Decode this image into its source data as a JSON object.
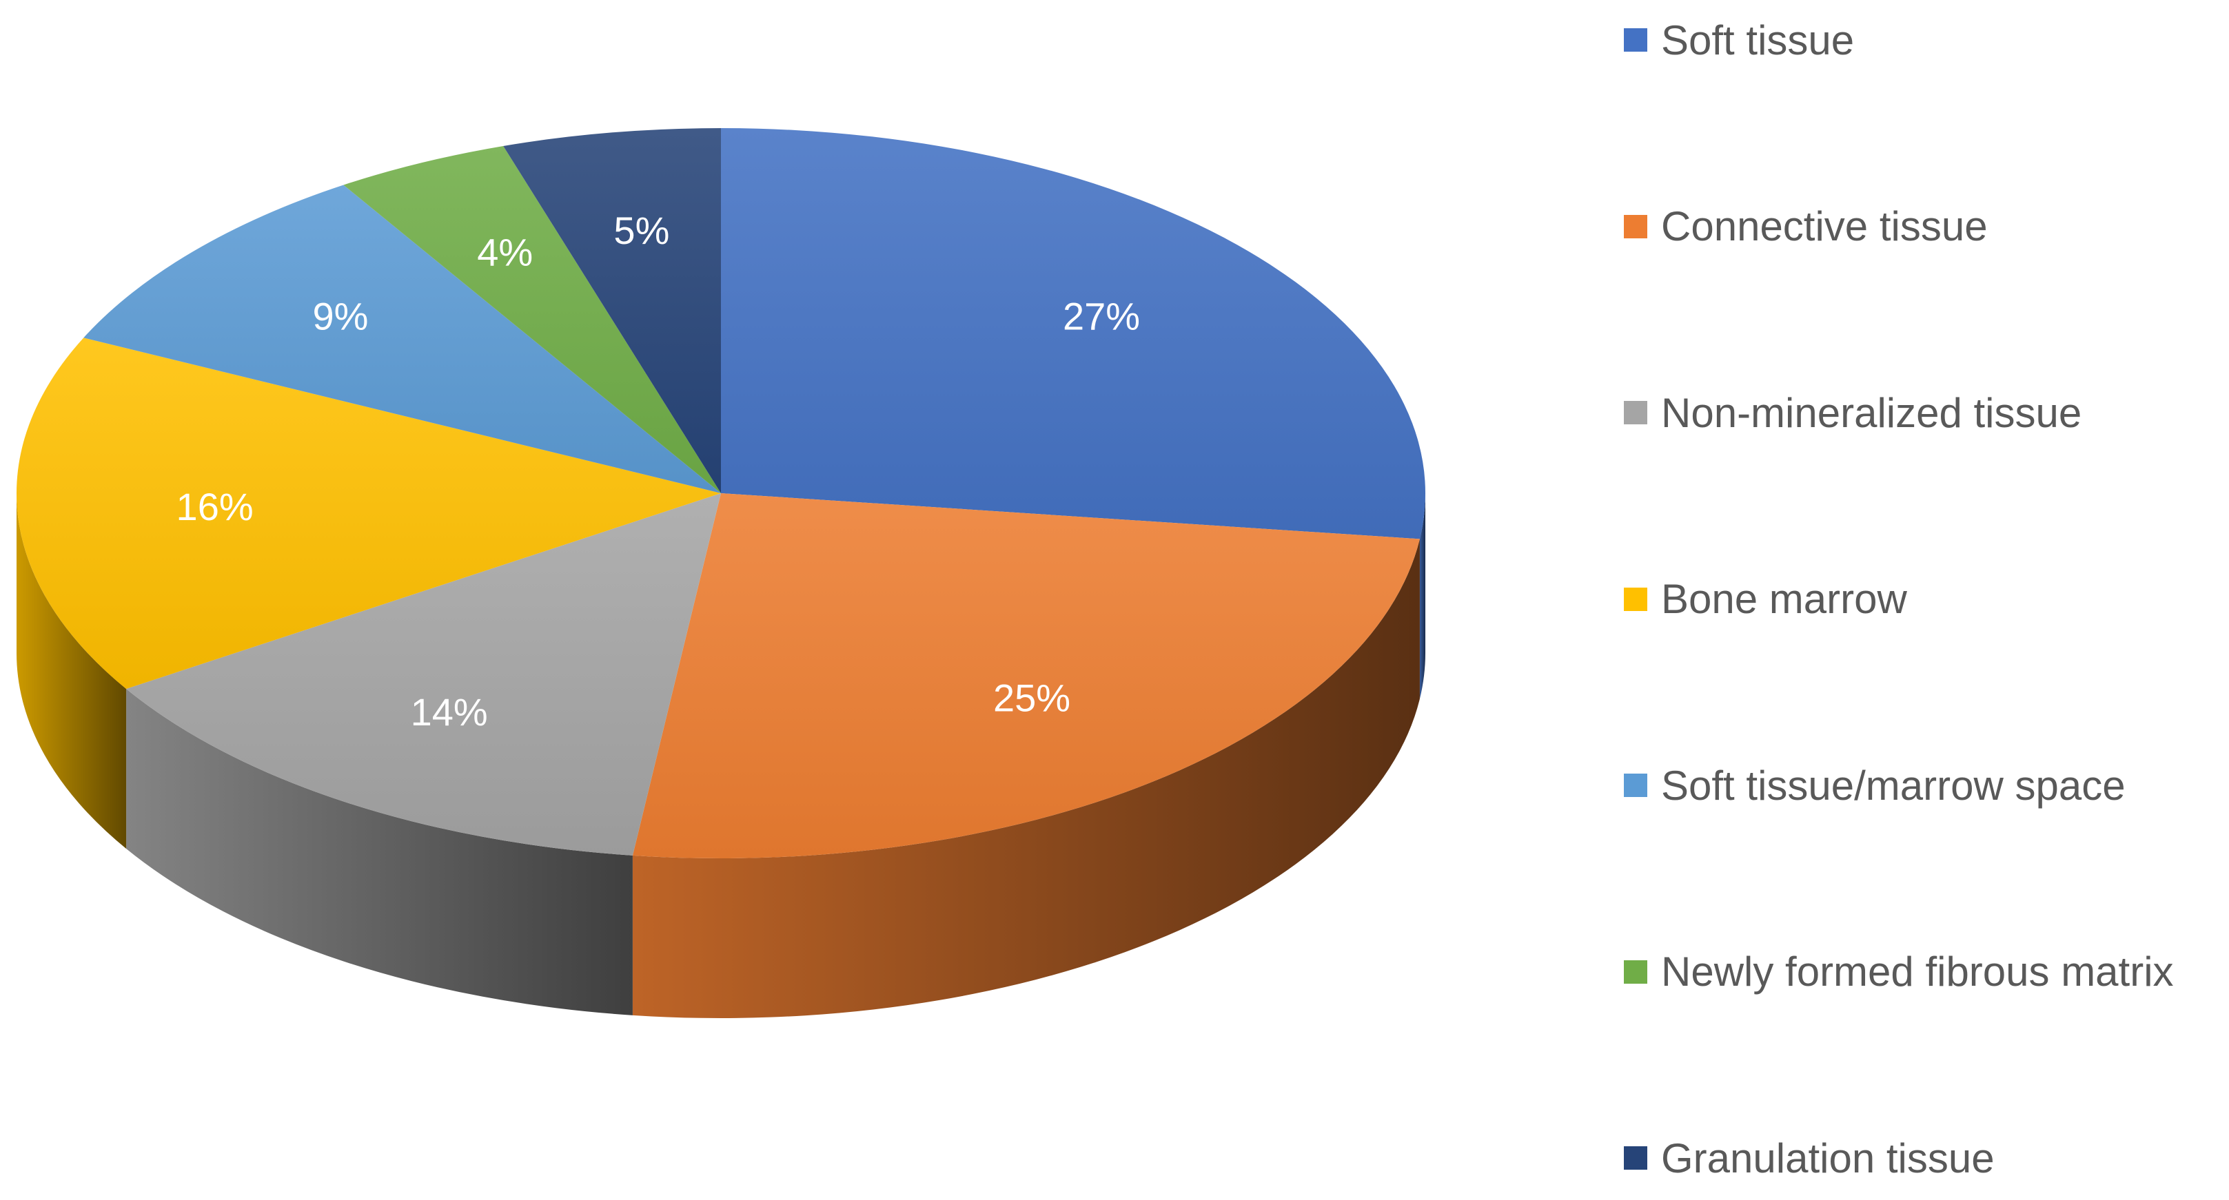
{
  "chart_data": {
    "type": "pie",
    "style": "3d",
    "legend_position": "right",
    "slices": [
      {
        "label": "Soft tissue",
        "value": 27,
        "display": "27%",
        "color": "#4472C4"
      },
      {
        "label": "Connective tissue",
        "value": 25,
        "display": "25%",
        "color": "#ED7D31"
      },
      {
        "label": "Non-mineralized tissue",
        "value": 14,
        "display": "14%",
        "color": "#A5A5A5"
      },
      {
        "label": "Bone marrow",
        "value": 16,
        "display": "16%",
        "color": "#FFC000"
      },
      {
        "label": "Soft tissue/marrow space",
        "value": 9,
        "display": "9%",
        "color": "#5B9BD5"
      },
      {
        "label": "Newly formed fibrous matrix",
        "value": 4,
        "display": "4%",
        "color": "#70AD47"
      },
      {
        "label": "Granulation tissue",
        "value": 5,
        "display": "5%",
        "color": "#264478"
      }
    ]
  }
}
